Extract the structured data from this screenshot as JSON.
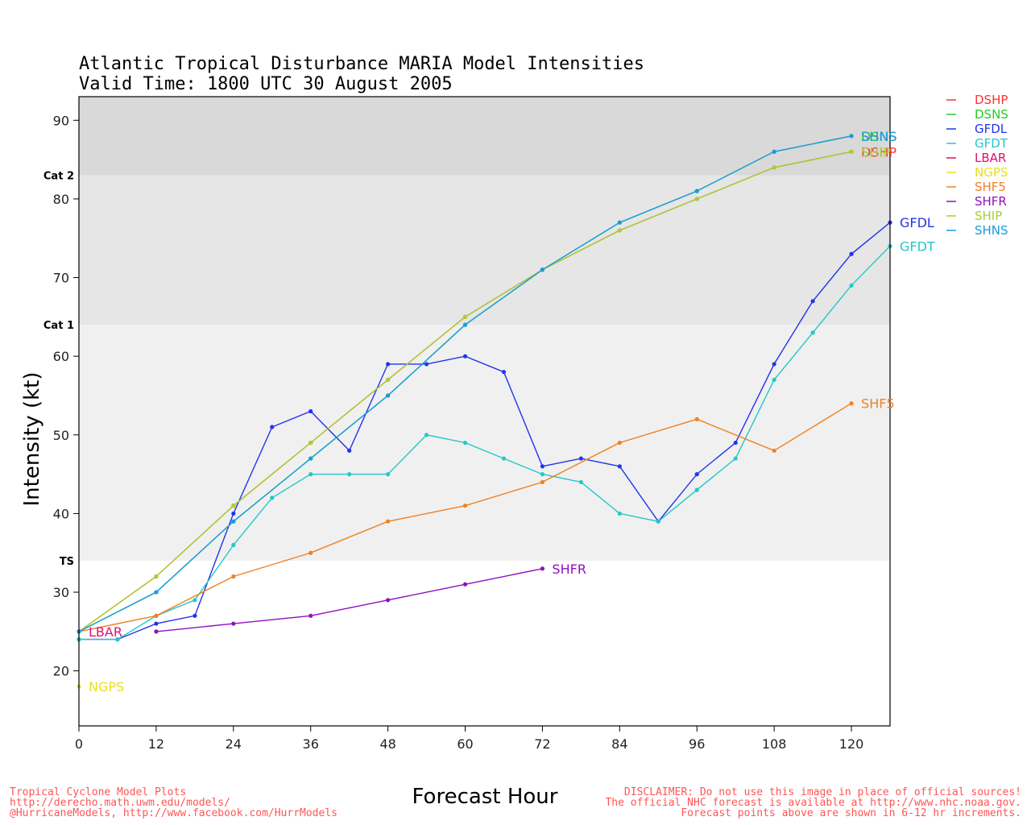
{
  "title": {
    "line1": "Atlantic Tropical Disturbance MARIA Model Intensities",
    "line2": "Valid Time: 1800 UTC 30 August 2005"
  },
  "footer": {
    "left": [
      "Tropical Cyclone Model Plots",
      "http://derecho.math.uwm.edu/models/",
      "@HurricaneModels, http://www.facebook.com/HurrModels"
    ],
    "right": [
      "DISCLAIMER: Do not use this image in place of official sources!",
      "The official NHC forecast is available at http://www.nhc.noaa.gov.",
      "Forecast points above are shown in 6-12 hr increments."
    ]
  },
  "chart_data": {
    "type": "line",
    "xlabel": "Forecast Hour",
    "ylabel": "Intensity (kt)",
    "xlim": [
      0,
      126
    ],
    "ylim": [
      13,
      93
    ],
    "xticks": [
      0,
      12,
      24,
      36,
      48,
      60,
      72,
      84,
      96,
      108,
      120
    ],
    "yticks": [
      20,
      30,
      40,
      50,
      60,
      70,
      80,
      90
    ],
    "grid": false,
    "legend_position": "right, outside plot",
    "category_bands": [
      {
        "label": "",
        "from": 13,
        "to": 34,
        "color": "#ffffff"
      },
      {
        "label": "TS",
        "from": 34,
        "to": 64,
        "color": "#f0f0f0"
      },
      {
        "label": "Cat 1",
        "from": 64,
        "to": 83,
        "color": "#e6e6e6"
      },
      {
        "label": "Cat 2",
        "from": 83,
        "to": 93,
        "color": "#d9d9d9"
      }
    ],
    "series": [
      {
        "name": "DSHP",
        "color": "#ff3333",
        "end_label": "DSHP",
        "points": [
          [
            0,
            25
          ],
          [
            12,
            32
          ],
          [
            24,
            41
          ],
          [
            36,
            49
          ],
          [
            48,
            57
          ],
          [
            60,
            65
          ],
          [
            72,
            71
          ],
          [
            84,
            76
          ],
          [
            96,
            80
          ],
          [
            108,
            84
          ],
          [
            120,
            86
          ]
        ]
      },
      {
        "name": "DSNS",
        "color": "#22cc22",
        "end_label": "DSNS",
        "points": [
          [
            0,
            25
          ],
          [
            12,
            30
          ],
          [
            24,
            39
          ],
          [
            36,
            47
          ],
          [
            48,
            55
          ],
          [
            60,
            64
          ],
          [
            72,
            71
          ],
          [
            84,
            77
          ],
          [
            96,
            81
          ],
          [
            108,
            86
          ],
          [
            120,
            88
          ]
        ]
      },
      {
        "name": "GFDL",
        "color": "#2233ee",
        "end_label": "GFDL",
        "points": [
          [
            0,
            24
          ],
          [
            6,
            24
          ],
          [
            12,
            26
          ],
          [
            18,
            27
          ],
          [
            24,
            40
          ],
          [
            30,
            51
          ],
          [
            36,
            53
          ],
          [
            42,
            48
          ],
          [
            48,
            59
          ],
          [
            54,
            59
          ],
          [
            60,
            60
          ],
          [
            66,
            58
          ],
          [
            72,
            46
          ],
          [
            78,
            47
          ],
          [
            84,
            46
          ],
          [
            90,
            39
          ],
          [
            96,
            45
          ],
          [
            102,
            49
          ],
          [
            108,
            59
          ],
          [
            114,
            67
          ],
          [
            120,
            73
          ],
          [
            126,
            77
          ]
        ]
      },
      {
        "name": "GFDT",
        "color": "#22c8c8",
        "end_label": "GFDT",
        "points": [
          [
            0,
            24
          ],
          [
            6,
            24
          ],
          [
            12,
            27
          ],
          [
            18,
            29
          ],
          [
            24,
            36
          ],
          [
            30,
            42
          ],
          [
            36,
            45
          ],
          [
            42,
            45
          ],
          [
            48,
            45
          ],
          [
            54,
            50
          ],
          [
            60,
            49
          ],
          [
            66,
            47
          ],
          [
            72,
            45
          ],
          [
            78,
            44
          ],
          [
            84,
            40
          ],
          [
            90,
            39
          ],
          [
            96,
            43
          ],
          [
            102,
            47
          ],
          [
            108,
            57
          ],
          [
            114,
            63
          ],
          [
            120,
            69
          ],
          [
            126,
            74
          ]
        ]
      },
      {
        "name": "LBAR",
        "color": "#e0106e",
        "end_label": "LBAR",
        "points": [
          [
            0,
            25
          ]
        ]
      },
      {
        "name": "NGPS",
        "color": "#e8e020",
        "end_label": "NGPS",
        "points": [
          [
            0,
            18
          ]
        ]
      },
      {
        "name": "SHF5",
        "color": "#f08020",
        "end_label": "SHF5",
        "points": [
          [
            0,
            25
          ],
          [
            12,
            27
          ],
          [
            24,
            32
          ],
          [
            36,
            35
          ],
          [
            48,
            39
          ],
          [
            60,
            41
          ],
          [
            72,
            44
          ],
          [
            84,
            49
          ],
          [
            96,
            52
          ],
          [
            108,
            48
          ],
          [
            120,
            54
          ]
        ]
      },
      {
        "name": "SHFR",
        "color": "#9010c0",
        "end_label": "SHFR",
        "points": [
          [
            12,
            25
          ],
          [
            24,
            26
          ],
          [
            36,
            27
          ],
          [
            48,
            29
          ],
          [
            60,
            31
          ],
          [
            72,
            33
          ]
        ]
      },
      {
        "name": "SHIP",
        "color": "#a8d030",
        "end_label": "SHIP",
        "points": [
          [
            0,
            25
          ],
          [
            12,
            32
          ],
          [
            24,
            41
          ],
          [
            36,
            49
          ],
          [
            48,
            57
          ],
          [
            60,
            65
          ],
          [
            72,
            71
          ],
          [
            84,
            76
          ],
          [
            96,
            80
          ],
          [
            108,
            84
          ],
          [
            120,
            86
          ]
        ]
      },
      {
        "name": "SHNS",
        "color": "#1a9ae0",
        "end_label": "SHNS",
        "points": [
          [
            0,
            25
          ],
          [
            12,
            30
          ],
          [
            24,
            39
          ],
          [
            36,
            47
          ],
          [
            48,
            55
          ],
          [
            60,
            64
          ],
          [
            72,
            71
          ],
          [
            84,
            77
          ],
          [
            96,
            81
          ],
          [
            108,
            86
          ],
          [
            120,
            88
          ]
        ]
      }
    ]
  }
}
